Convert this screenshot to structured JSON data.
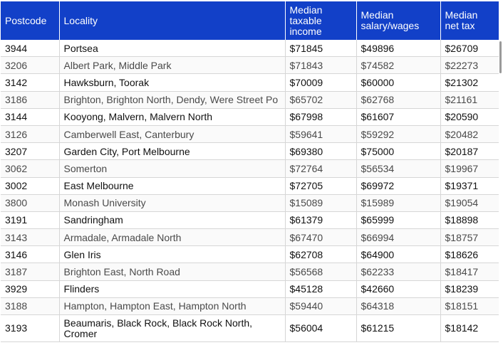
{
  "table": {
    "headers": {
      "postcode": "Postcode",
      "locality": "Locality",
      "income": [
        "Median",
        "taxable",
        "income"
      ],
      "salary": [
        "Median",
        "salary/wages"
      ],
      "nettax": [
        "Median",
        "net tax"
      ]
    },
    "rows": [
      {
        "postcode": "3944",
        "locality": "Portsea",
        "income": "$71845",
        "salary": "$49896",
        "nettax": "$26709"
      },
      {
        "postcode": "3206",
        "locality": "Albert Park, Middle Park",
        "income": "$71843",
        "salary": "$74582",
        "nettax": "$22273"
      },
      {
        "postcode": "3142",
        "locality": "Hawksburn, Toorak",
        "income": "$70009",
        "salary": "$60000",
        "nettax": "$21302"
      },
      {
        "postcode": "3186",
        "locality": "Brighton, Brighton North, Dendy, Were Street Po",
        "income": "$65702",
        "salary": "$62768",
        "nettax": "$21161"
      },
      {
        "postcode": "3144",
        "locality": "Kooyong, Malvern, Malvern North",
        "income": "$67998",
        "salary": "$61607",
        "nettax": "$20590"
      },
      {
        "postcode": "3126",
        "locality": "Camberwell East, Canterbury",
        "income": "$59641",
        "salary": "$59292",
        "nettax": "$20482"
      },
      {
        "postcode": "3207",
        "locality": "Garden City, Port Melbourne",
        "income": "$69380",
        "salary": "$75000",
        "nettax": "$20187"
      },
      {
        "postcode": "3062",
        "locality": "Somerton",
        "income": "$72764",
        "salary": "$56534",
        "nettax": "$19967"
      },
      {
        "postcode": "3002",
        "locality": "East Melbourne",
        "income": "$72705",
        "salary": "$69972",
        "nettax": "$19371"
      },
      {
        "postcode": "3800",
        "locality": "Monash University",
        "income": "$15089",
        "salary": "$15989",
        "nettax": "$19054"
      },
      {
        "postcode": "3191",
        "locality": "Sandringham",
        "income": "$61379",
        "salary": "$65999",
        "nettax": "$18898"
      },
      {
        "postcode": "3143",
        "locality": "Armadale, Armadale North",
        "income": "$67470",
        "salary": "$66994",
        "nettax": "$18757"
      },
      {
        "postcode": "3146",
        "locality": "Glen Iris",
        "income": "$62708",
        "salary": "$64900",
        "nettax": "$18626"
      },
      {
        "postcode": "3187",
        "locality": "Brighton East, North Road",
        "income": "$56568",
        "salary": "$62233",
        "nettax": "$18417"
      },
      {
        "postcode": "3929",
        "locality": "Flinders",
        "income": "$45128",
        "salary": "$42660",
        "nettax": "$18239"
      },
      {
        "postcode": "3188",
        "locality": "Hampton, Hampton East, Hampton North",
        "income": "$59440",
        "salary": "$64318",
        "nettax": "$18151"
      },
      {
        "postcode": "3193",
        "locality": "Beaumaris, Black Rock, Black Rock North, Cromer",
        "income": "$56004",
        "salary": "$61215",
        "nettax": "$18142"
      }
    ]
  },
  "colors": {
    "header_bg": "#1240c8",
    "header_text": "#ffffff"
  }
}
